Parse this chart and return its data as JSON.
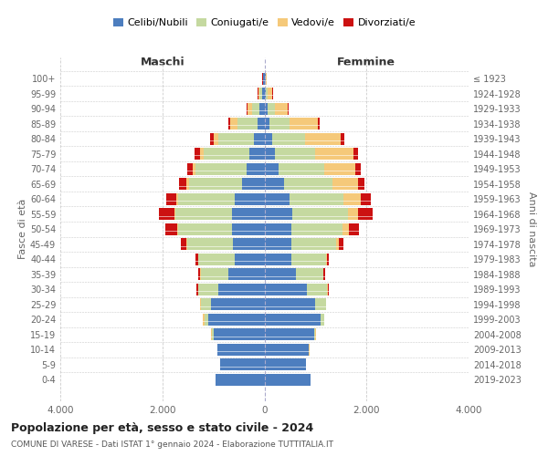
{
  "age_groups": [
    "0-4",
    "5-9",
    "10-14",
    "15-19",
    "20-24",
    "25-29",
    "30-34",
    "35-39",
    "40-44",
    "45-49",
    "50-54",
    "55-59",
    "60-64",
    "65-69",
    "70-74",
    "75-79",
    "80-84",
    "85-89",
    "90-94",
    "95-99",
    "100+"
  ],
  "birth_years": [
    "2019-2023",
    "2014-2018",
    "2009-2013",
    "2004-2008",
    "1999-2003",
    "1994-1998",
    "1989-1993",
    "1984-1988",
    "1979-1983",
    "1974-1978",
    "1969-1973",
    "1964-1968",
    "1959-1963",
    "1954-1958",
    "1949-1953",
    "1944-1948",
    "1939-1943",
    "1934-1938",
    "1929-1933",
    "1924-1928",
    "≤ 1923"
  ],
  "maschi": {
    "celibi": [
      950,
      860,
      920,
      1000,
      1100,
      1050,
      900,
      700,
      590,
      620,
      640,
      640,
      590,
      430,
      350,
      290,
      200,
      130,
      100,
      50,
      20
    ],
    "coniugati": [
      5,
      5,
      5,
      30,
      80,
      200,
      400,
      550,
      700,
      900,
      1050,
      1100,
      1100,
      1050,
      1000,
      900,
      700,
      400,
      150,
      50,
      10
    ],
    "vedovi": [
      2,
      2,
      2,
      10,
      20,
      5,
      5,
      5,
      5,
      10,
      20,
      30,
      40,
      50,
      60,
      80,
      100,
      150,
      80,
      20,
      5
    ],
    "divorziati": [
      2,
      2,
      2,
      5,
      5,
      10,
      30,
      50,
      50,
      100,
      230,
      290,
      200,
      150,
      100,
      100,
      60,
      30,
      20,
      10,
      2
    ]
  },
  "femmine": {
    "nubili": [
      900,
      810,
      870,
      980,
      1100,
      1000,
      830,
      620,
      530,
      530,
      530,
      540,
      490,
      380,
      280,
      200,
      150,
      100,
      70,
      30,
      20
    ],
    "coniugate": [
      5,
      5,
      5,
      20,
      70,
      200,
      400,
      530,
      680,
      880,
      1000,
      1100,
      1050,
      950,
      900,
      800,
      650,
      400,
      130,
      30,
      5
    ],
    "vedove": [
      2,
      2,
      2,
      5,
      5,
      5,
      5,
      10,
      20,
      50,
      120,
      200,
      350,
      500,
      600,
      750,
      700,
      550,
      250,
      100,
      15
    ],
    "divorziate": [
      2,
      2,
      2,
      5,
      5,
      10,
      20,
      30,
      40,
      80,
      200,
      280,
      200,
      130,
      100,
      80,
      60,
      30,
      20,
      10,
      2
    ]
  },
  "colors": {
    "celibi_nubili": "#4d7ebf",
    "coniugati": "#c5d9a0",
    "vedovi": "#f5c97a",
    "divorziati": "#cc1111"
  },
  "xlim": 4000,
  "title": "Popolazione per età, sesso e stato civile - 2024",
  "subtitle": "COMUNE DI VARESE - Dati ISTAT 1° gennaio 2024 - Elaborazione TUTTITALIA.IT",
  "ylabel_left": "Fasce di età",
  "ylabel_right": "Anni di nascita",
  "xlabel_left": "Maschi",
  "xlabel_right": "Femmine",
  "background_color": "#ffffff",
  "grid_color": "#cccccc"
}
